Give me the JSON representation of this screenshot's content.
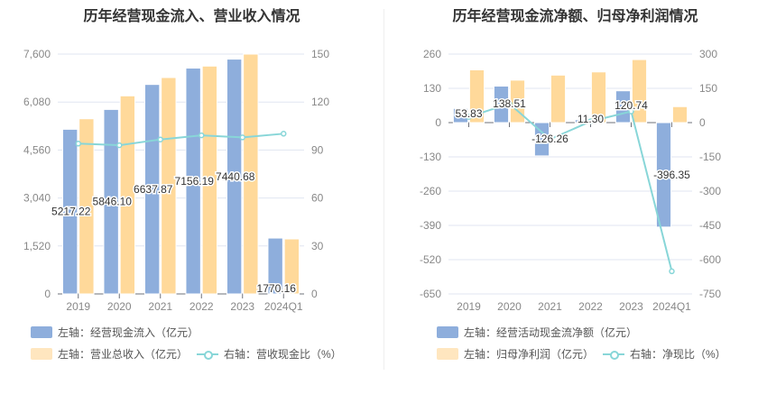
{
  "chart_data": [
    {
      "type": "bar",
      "title": "历年经营现金流入、营业收入情况",
      "categories": [
        "2019",
        "2020",
        "2021",
        "2022",
        "2023",
        "2024Q1"
      ],
      "left_axis": {
        "ticks": [
          "0",
          "1,520",
          "3,040",
          "4,560",
          "6,080",
          "7,600"
        ],
        "ylim": [
          0,
          7600
        ]
      },
      "right_axis": {
        "ticks": [
          "0",
          "30",
          "60",
          "90",
          "120",
          "150"
        ],
        "ylim": [
          0,
          150
        ]
      },
      "series": [
        {
          "name": "左轴：经营现金流入（亿元）",
          "axis": "left",
          "type": "bar",
          "color": "#8eaedc",
          "values": [
            5217.22,
            5846.1,
            6637.87,
            7156.19,
            7440.68,
            1770.16
          ],
          "labels": [
            "5217.22",
            "5846.10",
            "6637.87",
            "7156.19",
            "7440.68",
            "1770.16"
          ]
        },
        {
          "name": "左轴：营业总收入（亿元）",
          "axis": "left",
          "type": "bar",
          "color": "#ffd99a",
          "values": [
            5551,
            6277,
            6857,
            7220,
            7600,
            1743
          ]
        },
        {
          "name": "右轴：营收现金比（%）",
          "axis": "right",
          "type": "line",
          "color": "#88d6d8",
          "values": [
            94.0,
            93.0,
            96.6,
            99.2,
            97.9,
            100.2
          ]
        }
      ]
    },
    {
      "type": "bar",
      "title": "历年经营现金流净额、归母净利润情况",
      "categories": [
        "2019",
        "2020",
        "2021",
        "2022",
        "2023",
        "2024Q1"
      ],
      "left_axis": {
        "ticks": [
          "-650",
          "-520",
          "-390",
          "-260",
          "-130",
          "0",
          "130",
          "260"
        ],
        "ylim": [
          -650,
          260
        ]
      },
      "right_axis": {
        "ticks": [
          "-750",
          "-600",
          "-450",
          "-300",
          "-150",
          "0",
          "150",
          "300"
        ],
        "ylim": [
          -750,
          300
        ]
      },
      "series": [
        {
          "name": "左轴：经营活动现金流净额（亿元）",
          "axis": "left",
          "type": "bar",
          "color": "#8eaedc",
          "values": [
            53.83,
            138.51,
            -126.26,
            11.3,
            120.74,
            -396.35
          ],
          "labels": [
            "53.83",
            "138.51",
            "-126.26",
            "11.30",
            "120.74",
            "-396.35"
          ]
        },
        {
          "name": "左轴：归母净利润（亿元）",
          "axis": "right",
          "type": "bar",
          "color": "#ffd99a",
          "values": [
            231,
            186,
            208,
            222,
            276,
            70
          ]
        },
        {
          "name": "右轴：净现比（%）",
          "axis": "right",
          "type": "line",
          "color": "#88d6d8",
          "values": [
            25,
            83,
            -73,
            5.5,
            49,
            -651
          ]
        }
      ]
    }
  ]
}
